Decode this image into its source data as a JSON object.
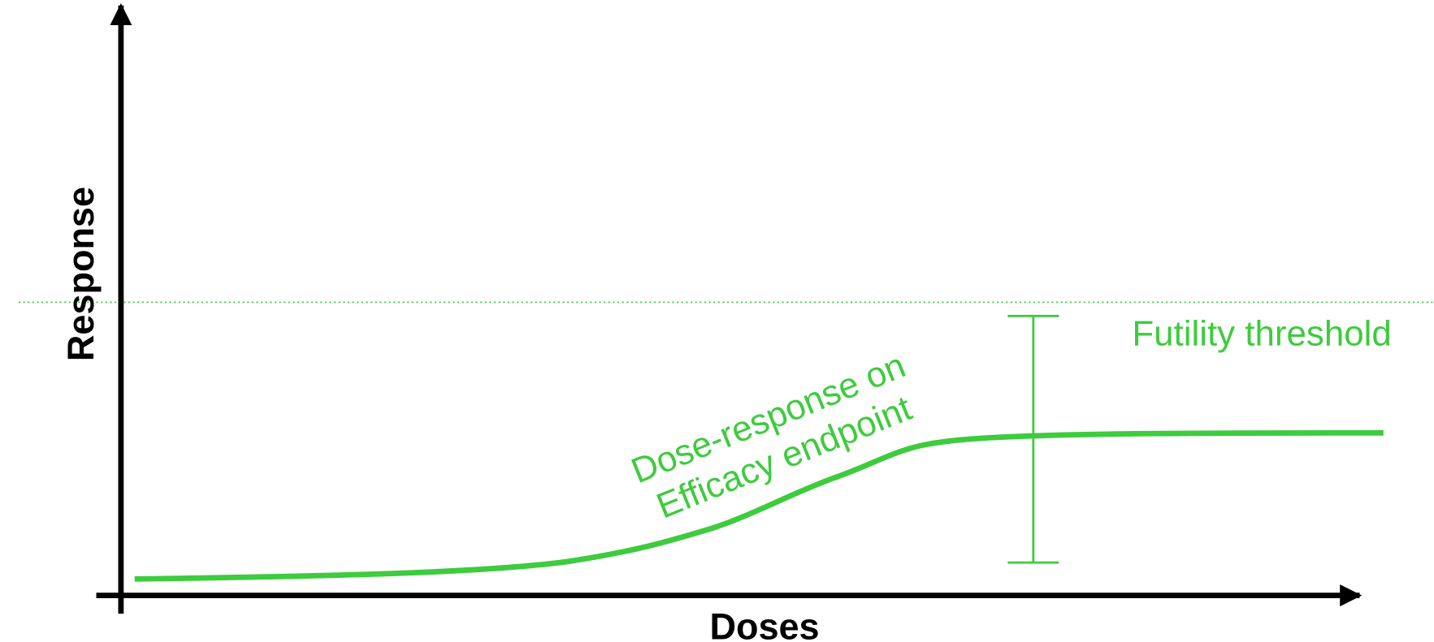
{
  "axes": {
    "x_label": "Doses",
    "y_label": "Response"
  },
  "annotations": {
    "threshold": "Futility threshold",
    "curve_label": [
      "Dose-response on",
      "Efficacy endpoint"
    ]
  }
}
